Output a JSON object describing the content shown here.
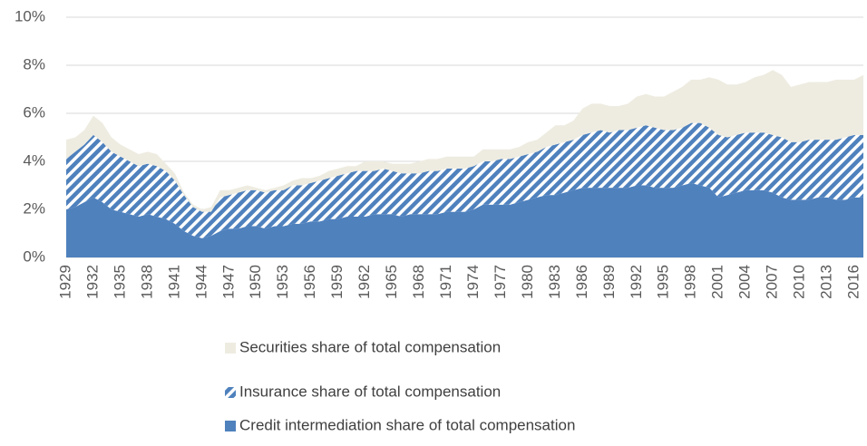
{
  "chart_data": {
    "type": "stacked-area",
    "categories": [
      "1929",
      null,
      null,
      "1932",
      null,
      null,
      "1935",
      null,
      null,
      "1938",
      null,
      null,
      "1941",
      null,
      null,
      "1944",
      null,
      null,
      "1947",
      null,
      null,
      "1950",
      null,
      null,
      "1953",
      null,
      null,
      "1956",
      null,
      null,
      "1959",
      null,
      null,
      "1962",
      null,
      null,
      "1965",
      null,
      null,
      "1968",
      null,
      null,
      "1971",
      null,
      null,
      "1974",
      null,
      null,
      "1977",
      null,
      null,
      "1980",
      null,
      null,
      "1983",
      null,
      null,
      "1986",
      null,
      null,
      "1989",
      null,
      null,
      "1992",
      null,
      null,
      "1995",
      null,
      null,
      "1998",
      null,
      null,
      "2001",
      null,
      null,
      "2004",
      null,
      null,
      "2007",
      null,
      null,
      "2010",
      null,
      null,
      "2013",
      null,
      null,
      "2016",
      null
    ],
    "series": [
      {
        "name": "Credit intermediation share of total compensation",
        "color": "#4f81bd",
        "values": [
          2.0,
          2.1,
          2.3,
          2.5,
          2.3,
          2.0,
          1.9,
          1.8,
          1.7,
          1.8,
          1.7,
          1.6,
          1.4,
          1.1,
          0.9,
          0.8,
          0.9,
          1.1,
          1.2,
          1.2,
          1.3,
          1.3,
          1.2,
          1.3,
          1.3,
          1.4,
          1.4,
          1.5,
          1.5,
          1.6,
          1.6,
          1.7,
          1.7,
          1.7,
          1.8,
          1.8,
          1.8,
          1.7,
          1.8,
          1.8,
          1.8,
          1.8,
          1.9,
          1.9,
          1.9,
          2.0,
          2.2,
          2.2,
          2.2,
          2.2,
          2.3,
          2.4,
          2.5,
          2.6,
          2.6,
          2.7,
          2.8,
          2.9,
          2.9,
          2.9,
          2.9,
          2.9,
          2.9,
          3.0,
          3.0,
          2.9,
          2.9,
          2.9,
          3.0,
          3.1,
          3.0,
          2.9,
          2.5,
          2.6,
          2.7,
          2.8,
          2.8,
          2.8,
          2.7,
          2.5,
          2.4,
          2.4,
          2.4,
          2.5,
          2.5,
          2.4,
          2.4,
          2.5,
          2.5
        ]
      },
      {
        "name": "Insurance share of total compensation",
        "color": "#4f81bd",
        "pattern": "hatch",
        "values": [
          2.1,
          2.3,
          2.4,
          2.6,
          2.5,
          2.4,
          2.3,
          2.2,
          2.1,
          2.1,
          2.1,
          2.0,
          1.8,
          1.5,
          1.2,
          1.1,
          1.0,
          1.4,
          1.4,
          1.5,
          1.5,
          1.5,
          1.5,
          1.5,
          1.5,
          1.6,
          1.6,
          1.6,
          1.7,
          1.7,
          1.8,
          1.8,
          1.9,
          1.9,
          1.8,
          1.9,
          1.8,
          1.8,
          1.7,
          1.7,
          1.8,
          1.8,
          1.8,
          1.8,
          1.8,
          1.8,
          1.8,
          1.8,
          1.9,
          1.9,
          1.9,
          1.9,
          1.9,
          2.0,
          2.1,
          2.1,
          2.1,
          2.2,
          2.3,
          2.4,
          2.3,
          2.4,
          2.4,
          2.4,
          2.5,
          2.5,
          2.4,
          2.4,
          2.4,
          2.5,
          2.6,
          2.5,
          2.6,
          2.4,
          2.4,
          2.4,
          2.4,
          2.4,
          2.4,
          2.5,
          2.4,
          2.4,
          2.5,
          2.4,
          2.4,
          2.5,
          2.6,
          2.6,
          2.6
        ]
      },
      {
        "name": "Securities share of total compensation",
        "color": "#eeece1",
        "values": [
          0.8,
          0.6,
          0.6,
          0.8,
          0.8,
          0.6,
          0.5,
          0.5,
          0.5,
          0.5,
          0.5,
          0.3,
          0.3,
          0.1,
          0.1,
          0.1,
          0.2,
          0.3,
          0.2,
          0.2,
          0.2,
          0.1,
          0.1,
          0.1,
          0.2,
          0.2,
          0.3,
          0.2,
          0.2,
          0.3,
          0.3,
          0.3,
          0.2,
          0.4,
          0.4,
          0.3,
          0.3,
          0.4,
          0.4,
          0.5,
          0.5,
          0.5,
          0.5,
          0.5,
          0.5,
          0.4,
          0.5,
          0.5,
          0.4,
          0.4,
          0.4,
          0.5,
          0.5,
          0.6,
          0.8,
          0.7,
          0.8,
          1.1,
          1.2,
          1.1,
          1.1,
          1.0,
          1.1,
          1.3,
          1.3,
          1.3,
          1.4,
          1.6,
          1.7,
          1.8,
          1.8,
          2.1,
          2.3,
          2.2,
          2.1,
          2.1,
          2.3,
          2.4,
          2.7,
          2.6,
          2.3,
          2.4,
          2.4,
          2.4,
          2.4,
          2.5,
          2.4,
          2.3,
          2.5
        ]
      }
    ],
    "ylim": [
      0,
      10
    ],
    "yticks": [
      {
        "value": 0,
        "label": "0%"
      },
      {
        "value": 2,
        "label": "2%"
      },
      {
        "value": 4,
        "label": "4%"
      },
      {
        "value": 6,
        "label": "6%"
      },
      {
        "value": 8,
        "label": "8%"
      },
      {
        "value": 10,
        "label": "10%"
      }
    ],
    "grid": true,
    "legend": "bottom"
  }
}
